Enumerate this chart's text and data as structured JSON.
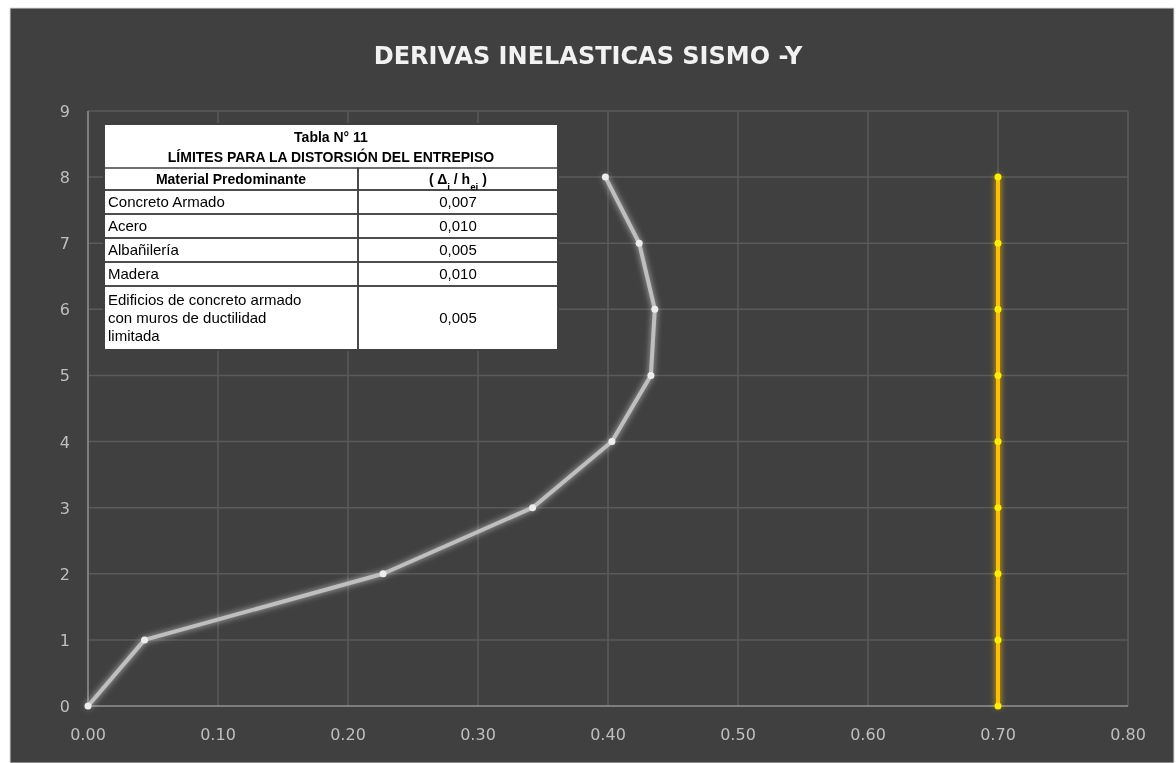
{
  "chart_data": {
    "type": "line",
    "title": "DERIVAS INELASTICAS SISMO -Y",
    "series": [
      {
        "color": "#bfbfbf",
        "x": [
          0,
          0.0435,
          0.227,
          0.342,
          0.403,
          0.433,
          0.436,
          0.424,
          0.398
        ],
        "values": [
          0,
          1,
          2,
          3,
          4,
          5,
          6,
          7,
          8
        ]
      },
      {
        "color": "#ffc000",
        "x": [
          0.7,
          0.7,
          0.7,
          0.7,
          0.7,
          0.7,
          0.7,
          0.7,
          0.7
        ],
        "values": [
          0,
          1,
          2,
          3,
          4,
          5,
          6,
          7,
          8
        ]
      }
    ],
    "xlim": [
      0,
      0.8
    ],
    "xticks": [
      {
        "value": 0,
        "label": "0.00"
      },
      {
        "value": 0.1,
        "label": "0.10"
      },
      {
        "value": 0.2,
        "label": "0.20"
      },
      {
        "value": 0.3,
        "label": "0.30"
      },
      {
        "value": 0.4,
        "label": "0.40"
      },
      {
        "value": 0.5,
        "label": "0.50"
      },
      {
        "value": 0.6,
        "label": "0.60"
      },
      {
        "value": 0.7,
        "label": "0.70"
      },
      {
        "value": 0.8,
        "label": "0.80"
      }
    ],
    "ylim": [
      0,
      9
    ],
    "yticks": [
      0,
      1,
      2,
      3,
      4,
      5,
      6,
      7,
      8,
      9
    ],
    "grid": true,
    "marker": "circle",
    "line_style": "solid",
    "annotations": [
      "Tabla N° 11",
      "LÍMITES PARA LA DISTORSIÓN DEL ENTREPISO",
      "Material Predominante",
      "( Δ$_{i}$ / h$_{ei}$ )",
      "Concreto Armado",
      "0,007",
      "Acero",
      "0,010",
      "Albañilería",
      "0,005",
      "Madera",
      "0,010",
      "Edificios de concreto armado con muros de ductilidad limitada",
      "0,005"
    ]
  }
}
